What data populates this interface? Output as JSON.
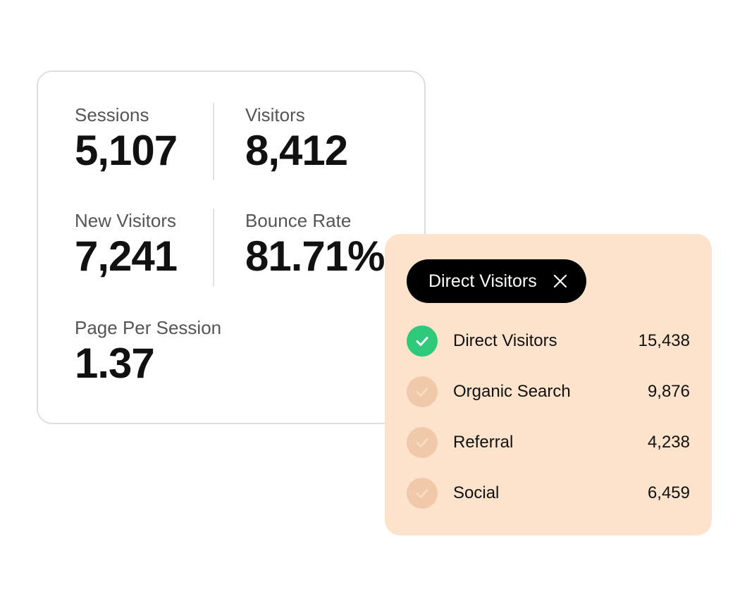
{
  "stats": [
    {
      "label": "Sessions",
      "value": "5,107"
    },
    {
      "label": "Visitors",
      "value": "8,412"
    },
    {
      "label": "New Visitors",
      "value": "7,241"
    },
    {
      "label": "Bounce Rate",
      "value": "81.71%"
    },
    {
      "label": "Page Per Session",
      "value": "1.37"
    }
  ],
  "filter": {
    "chip": "Direct Visitors",
    "rows": [
      {
        "label": "Direct Visitors",
        "value": "15,438",
        "checked": true
      },
      {
        "label": "Organic Search",
        "value": "9,876",
        "checked": false
      },
      {
        "label": "Referral",
        "value": "4,238",
        "checked": false
      },
      {
        "label": "Social",
        "value": "6,459",
        "checked": false
      }
    ]
  }
}
